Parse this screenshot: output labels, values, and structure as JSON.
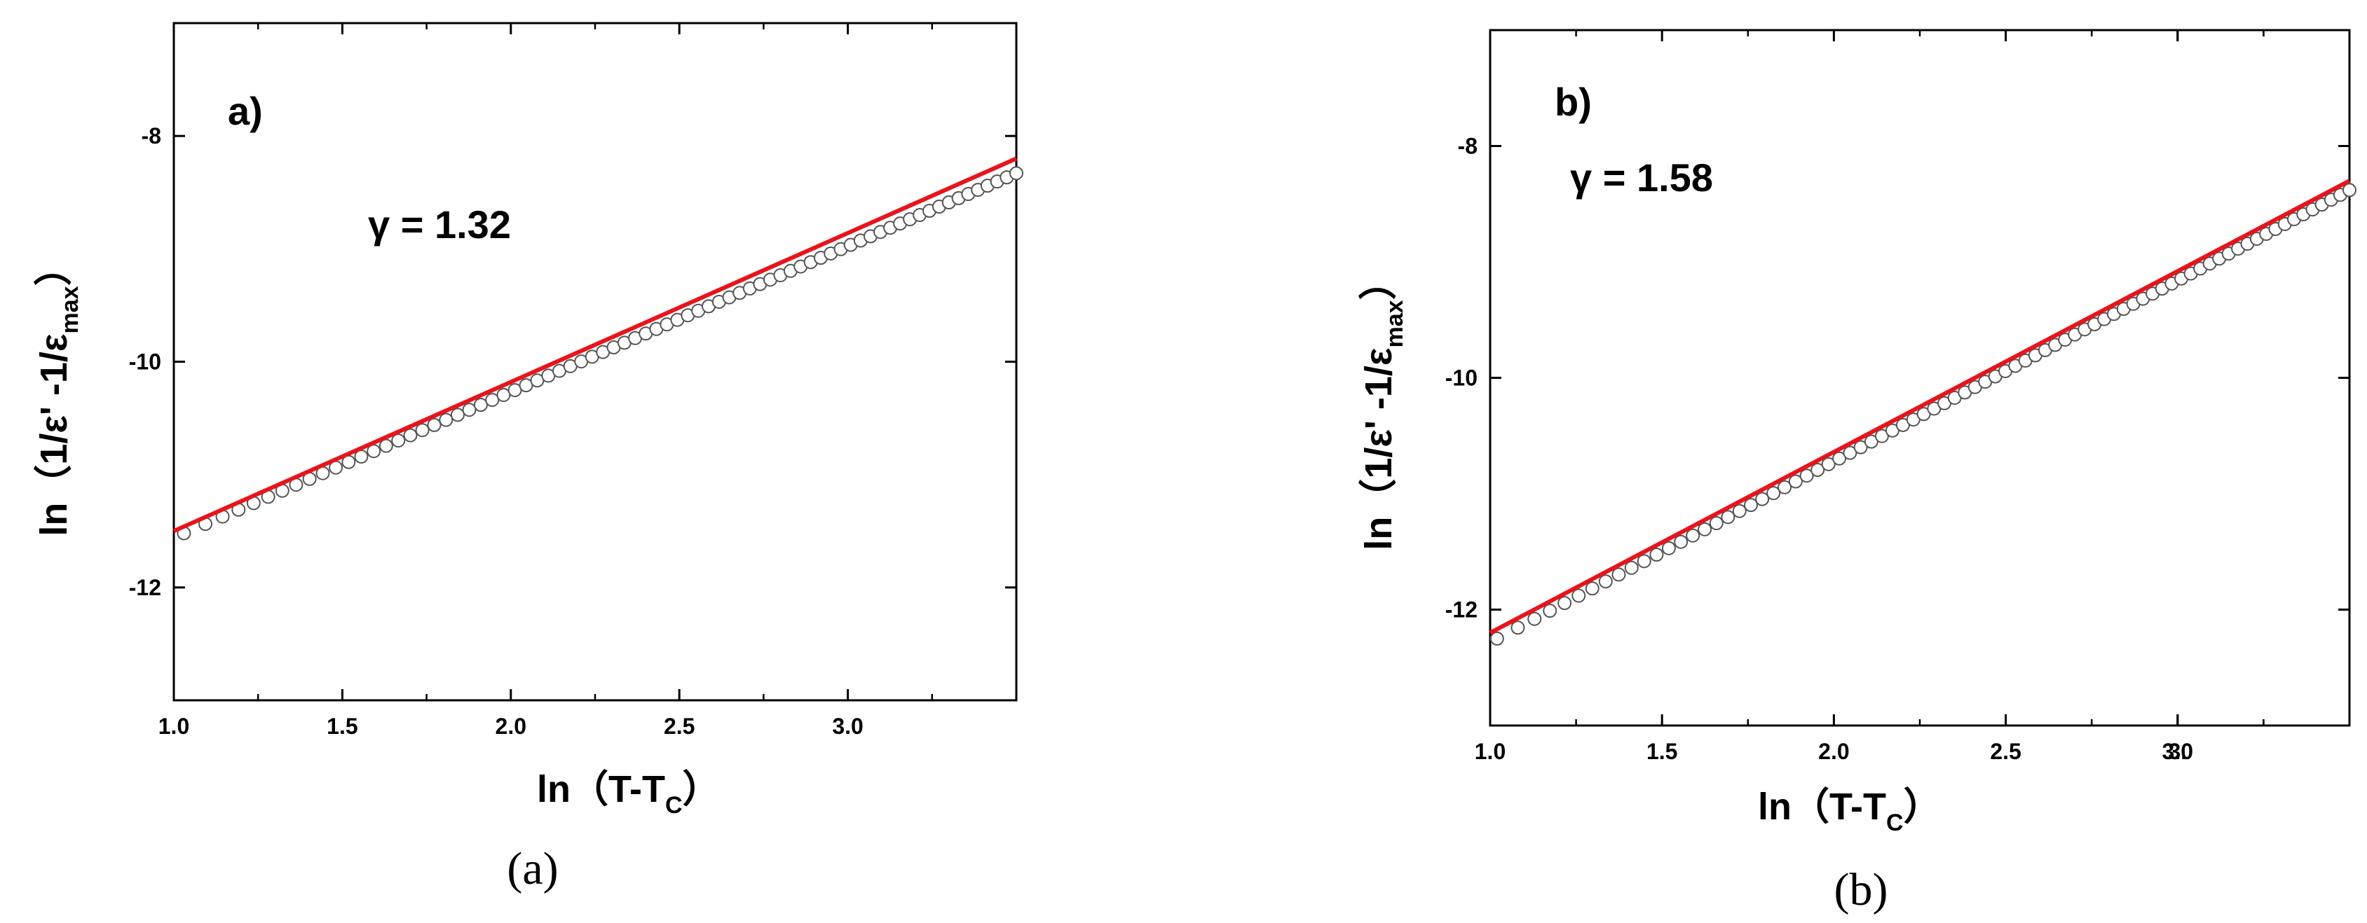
{
  "chart_data": [
    {
      "type": "scatter",
      "panel_label": "a)",
      "caption": "(a)",
      "annotation": "γ = 1.32",
      "xlabel": {
        "main": "ln（T-T",
        "sub": "C",
        "end": "）"
      },
      "ylabel": {
        "main": "ln（1/ε' -1/ε",
        "sub": "max",
        "end": "）"
      },
      "xlim": [
        1.0,
        3.5
      ],
      "ylim": [
        -13,
        -7
      ],
      "xticks": [
        "1.0",
        "1.5",
        "2.0",
        "2.5",
        "3.0"
      ],
      "yticks": [
        "-8",
        "-10",
        "-12"
      ],
      "series": [
        {
          "kind": "points",
          "x_start": 1.03,
          "x_end": 3.5,
          "count": 75,
          "y_start": -11.52,
          "y_end": -8.33,
          "marker": "open-circle",
          "color": "#555555"
        },
        {
          "kind": "fit",
          "x": [
            1.0,
            3.5
          ],
          "y": [
            -11.5,
            -8.2
          ],
          "color": "#e8141c"
        }
      ]
    },
    {
      "type": "scatter",
      "panel_label": "b)",
      "caption": "(b)",
      "annotation": "γ = 1.58",
      "xlabel": {
        "main": "ln（T-T",
        "sub": "C",
        "end": "）"
      },
      "ylabel": {
        "main": "ln（1/ε' -1/ε",
        "sub": "max",
        "end": "）"
      },
      "xlim": [
        1.0,
        3.5
      ],
      "ylim": [
        -13,
        -7
      ],
      "xticks": [
        "1.0",
        "1.5",
        "2.0",
        "2.5",
        "3.0",
        "3."
      ],
      "yticks": [
        "-8",
        "-10",
        "-12"
      ],
      "series": [
        {
          "kind": "points",
          "x_start": 1.02,
          "x_end": 3.5,
          "count": 80,
          "y_start": -12.25,
          "y_end": -8.38,
          "marker": "open-circle",
          "color": "#555555"
        },
        {
          "kind": "fit",
          "x": [
            1.0,
            3.5
          ],
          "y": [
            -12.2,
            -8.3
          ],
          "color": "#e8141c"
        }
      ]
    }
  ]
}
